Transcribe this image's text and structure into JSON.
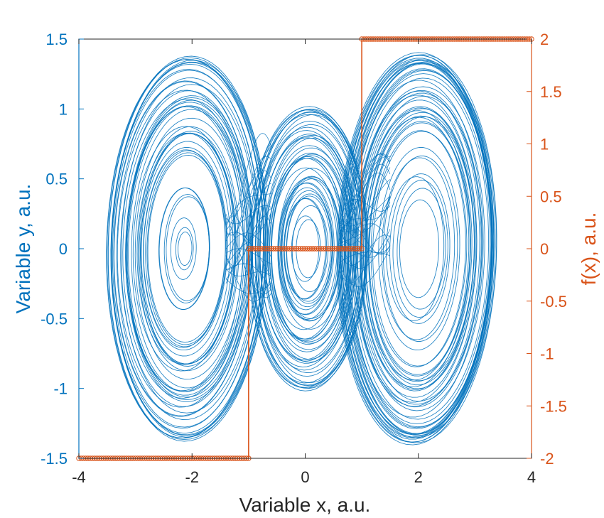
{
  "chart_data": {
    "type": "line",
    "title": "",
    "xlabel": "Variable x, a.u.",
    "ylabel_left": "Variable y, a.u.",
    "ylabel_right": "f(x), a.u.",
    "xlim": [
      -4,
      4
    ],
    "ylim_left": [
      -1.5,
      1.5
    ],
    "ylim_right": [
      -2,
      2
    ],
    "x_ticks": [
      "-4",
      "-2",
      "0",
      "2",
      "4"
    ],
    "x_tick_values": [
      -4,
      -2,
      0,
      2,
      4
    ],
    "y_left_ticks": [
      "-1.5",
      "-1",
      "-0.5",
      "0",
      "0.5",
      "1",
      "1.5"
    ],
    "y_left_tick_values": [
      -1.5,
      -1,
      -0.5,
      0,
      0.5,
      1,
      1.5
    ],
    "y_right_ticks": [
      "-2",
      "-1.5",
      "-1",
      "-0.5",
      "0",
      "0.5",
      "1",
      "1.5",
      "2"
    ],
    "y_right_tick_values": [
      -2,
      -1.5,
      -1,
      -0.5,
      0,
      0.5,
      1,
      1.5,
      2
    ],
    "grid": false,
    "series": [
      {
        "axis": "left",
        "style": "line",
        "color": "#0072BD",
        "description": "chaotic multi-scroll attractor trajectory (y vs x), three scrolls centered near x=-2, 0, 2",
        "scroll_centers_x": [
          -2.1,
          0.0,
          2.0
        ],
        "scroll_center_y": 0.0
      },
      {
        "axis": "right",
        "style": "step-with-markers",
        "color": "#D95319",
        "description": "piecewise-constant nonlinearity f(x)",
        "steps": [
          {
            "x_from": -4,
            "x_to": -1,
            "value": -2
          },
          {
            "x_from": -1,
            "x_to": 1,
            "value": 0
          },
          {
            "x_from": 1,
            "x_to": 4,
            "value": 2
          }
        ]
      }
    ]
  },
  "colors": {
    "left_axis": "#0072BD",
    "right_axis": "#D95319",
    "frame": "#262626"
  }
}
